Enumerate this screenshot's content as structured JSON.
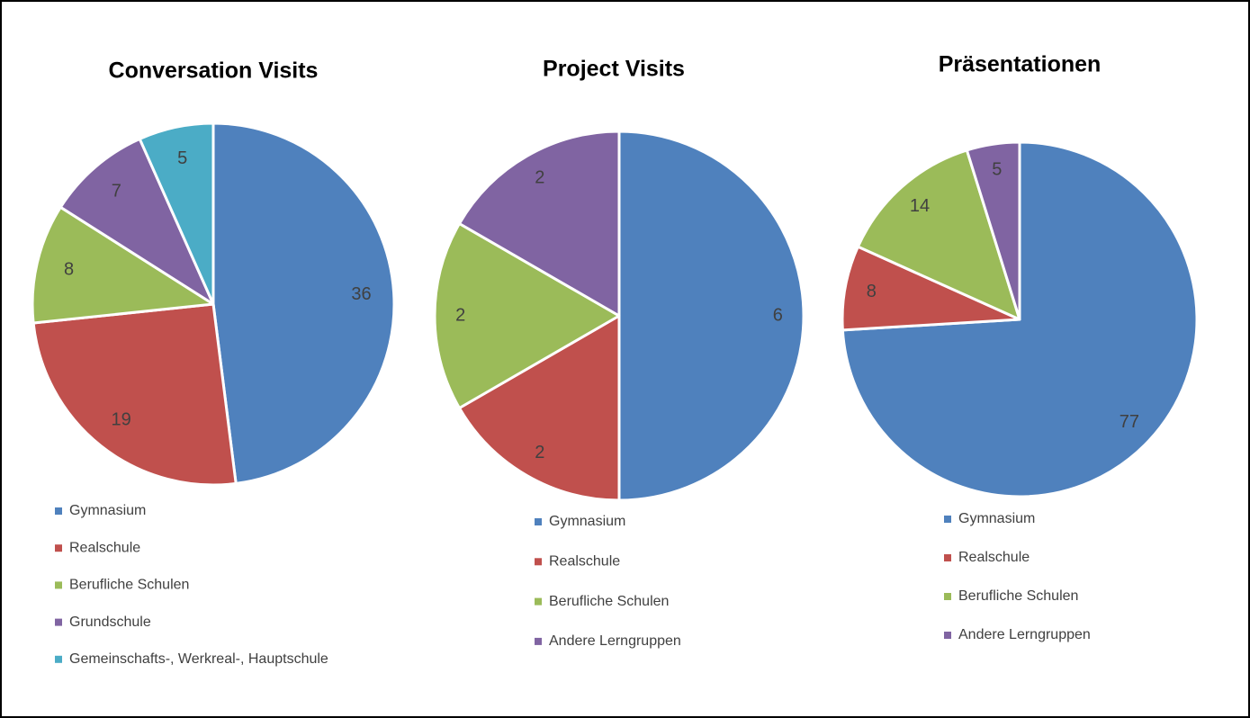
{
  "chart_data": [
    {
      "type": "pie",
      "title": "Conversation Visits",
      "categories": [
        "Gymnasium",
        "Realschule",
        "Berufliche Schulen",
        "Grundschule",
        "Gemeinschafts-, Werkreal-, Hauptschule"
      ],
      "values": [
        36,
        19,
        8,
        7,
        5
      ],
      "colors": [
        "#4f81bd",
        "#c0504d",
        "#9bbb59",
        "#8064a2",
        "#4bacc6"
      ]
    },
    {
      "type": "pie",
      "title": "Project Visits",
      "categories": [
        "Gymnasium",
        "Realschule",
        "Berufliche Schulen",
        "Andere Lerngruppen"
      ],
      "values": [
        6,
        2,
        2,
        2
      ],
      "colors": [
        "#4f81bd",
        "#c0504d",
        "#9bbb59",
        "#8064a2"
      ]
    },
    {
      "type": "pie",
      "title": "Präsentationen",
      "categories": [
        "Gymnasium",
        "Realschule",
        "Berufliche Schulen",
        "Andere Lerngruppen"
      ],
      "values": [
        77,
        8,
        14,
        5
      ],
      "colors": [
        "#4f81bd",
        "#c0504d",
        "#9bbb59",
        "#8064a2"
      ]
    }
  ]
}
